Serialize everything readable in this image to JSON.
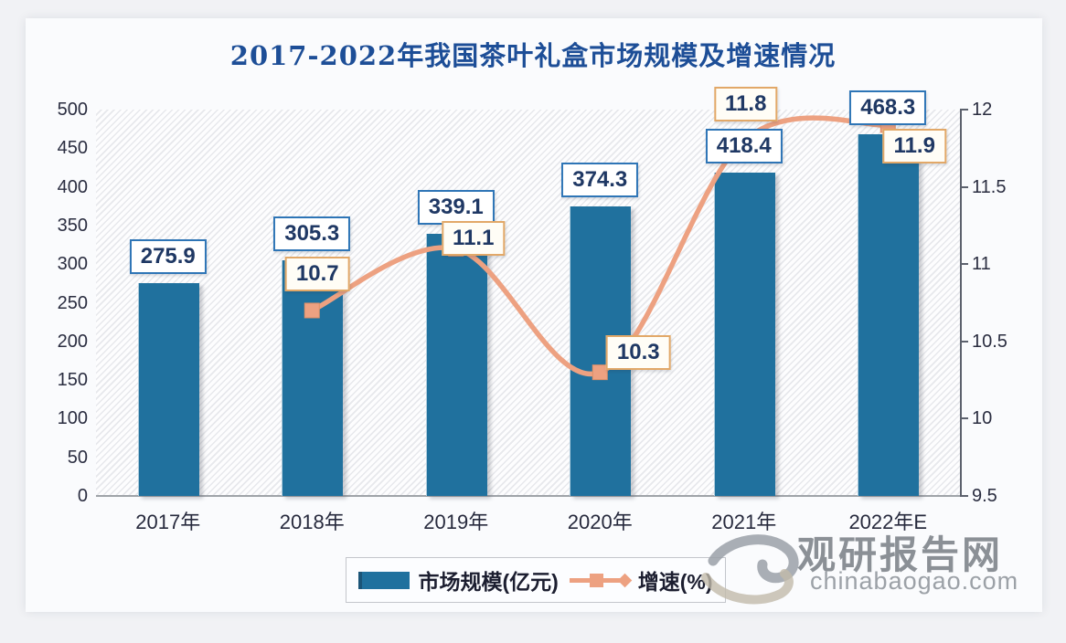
{
  "title": "2017-2022年我国茶叶礼盒市场规模及增速情况",
  "legend": {
    "items": [
      {
        "label": "市场规模(亿元)",
        "type": "bar"
      },
      {
        "label": "增速(%)",
        "type": "line"
      }
    ]
  },
  "watermark": {
    "brand": "观研报告网",
    "domain": "chinabaogao.com"
  },
  "colors": {
    "bar": "#20719E",
    "line": "#EDA181",
    "marker_border": "#DE8F66",
    "bar_label_border": "#2E75B6",
    "line_label_border": "#E2A868",
    "label_text": "#1F3864",
    "axis_text": "#2A2D40",
    "title": "#1D4E97",
    "watermark_text": "#8B9096",
    "watermark_swoosh_gray": "#9AA0A8",
    "watermark_swoosh_tan": "#C2BAAA"
  },
  "chart_data": {
    "type": "bar+line",
    "title": "2017-2022年我国茶叶礼盒市场规模及增速情况",
    "categories": [
      "2017年",
      "2018年",
      "2019年",
      "2020年",
      "2021年",
      "2022年E"
    ],
    "series": [
      {
        "name": "市场规模(亿元)",
        "type": "bar",
        "axis": "left",
        "values": [
          275.9,
          305.3,
          339.1,
          374.3,
          418.4,
          468.3
        ]
      },
      {
        "name": "增速(%)",
        "type": "line",
        "axis": "right",
        "values": [
          null,
          10.7,
          11.1,
          10.3,
          11.8,
          11.9
        ]
      }
    ],
    "left_axis": {
      "min": 0,
      "max": 500,
      "step": 50
    },
    "right_axis": {
      "min": 9.5,
      "max": 12,
      "step": 0.5
    },
    "grid": false,
    "legend_position": "bottom",
    "plot_background": "diagonal-hatch",
    "data_labels": true
  }
}
